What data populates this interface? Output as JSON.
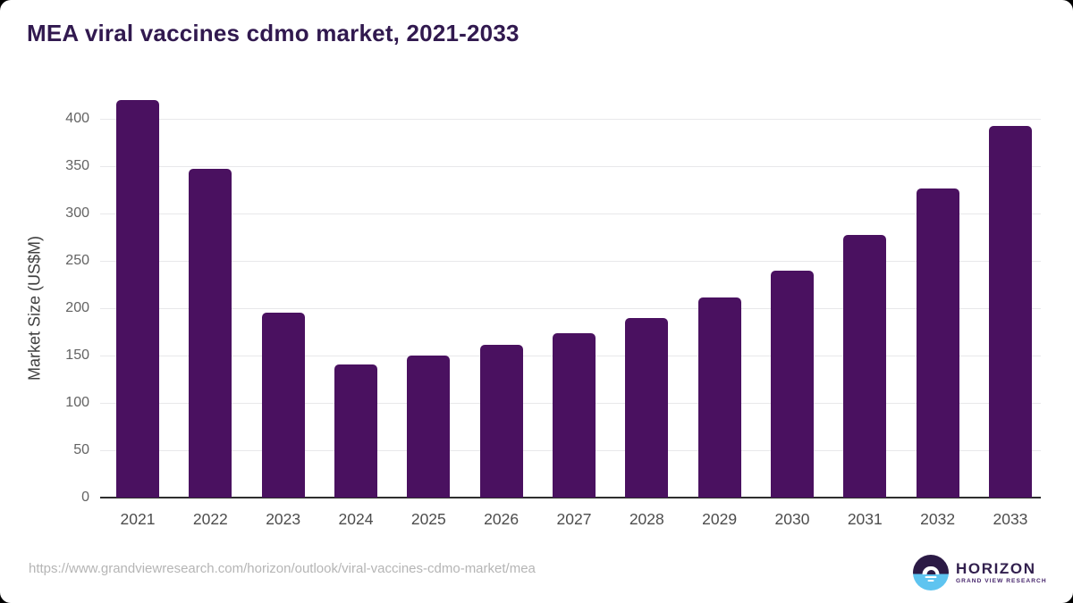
{
  "window": {
    "background_color": "#000000",
    "card_color": "#FFFFFF"
  },
  "header": {
    "title": "MEA viral vaccines cdmo market, 2021-2033",
    "title_color": "#31194F"
  },
  "chart_data": {
    "type": "bar",
    "title": "MEA viral vaccines cdmo market, 2021-2033",
    "categories": [
      "2021",
      "2022",
      "2023",
      "2024",
      "2025",
      "2026",
      "2027",
      "2028",
      "2029",
      "2030",
      "2031",
      "2032",
      "2033"
    ],
    "values": [
      420,
      347,
      195,
      141,
      150,
      161,
      174,
      190,
      211,
      240,
      277,
      326,
      392
    ],
    "xlabel": "",
    "ylabel": "Market Size (US$M)",
    "yticks": [
      0,
      50,
      100,
      150,
      200,
      250,
      300,
      350,
      400
    ],
    "ylim": [
      0,
      430
    ],
    "grid": "horizontal-only",
    "legend": "none",
    "bar_color": "#4A1160",
    "gridline_color": "#E8E8EA",
    "axis_line_color": "#2E2E2E",
    "ytick_label_color": "#636363",
    "xtick_label_color": "#4D4D4D"
  },
  "footer": {
    "source_url": "https://www.grandviewresearch.com/horizon/outlook/viral-vaccines-cdmo-market/mea",
    "logo": {
      "name": "HORIZON",
      "tagline": "GRAND VIEW RESEARCH",
      "dark_color": "#2B1A45",
      "accent_color": "#5EC4F0",
      "text_color": "#32204E"
    }
  }
}
